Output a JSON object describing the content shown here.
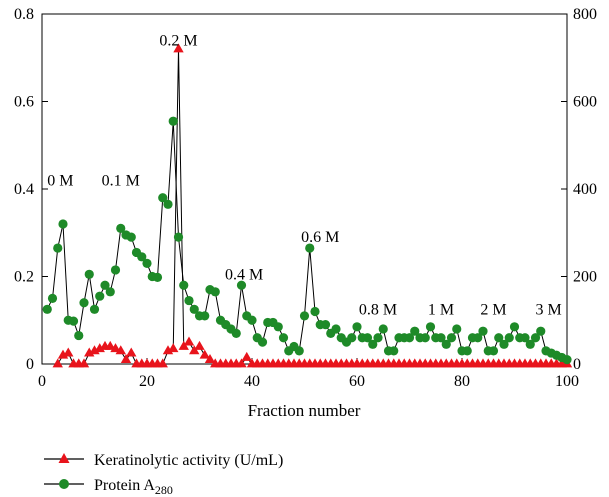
{
  "chart_data": {
    "type": "line",
    "xlabel": "Fraction number",
    "xlim": [
      0,
      100
    ],
    "xticks": [
      "0",
      "20",
      "40",
      "60",
      "80",
      "100"
    ],
    "y_left": {
      "lim": [
        0,
        0.8
      ],
      "ticks": [
        "0",
        "0.2",
        "0.4",
        "0.6",
        "0.8"
      ]
    },
    "y_right": {
      "lim": [
        0,
        800
      ],
      "ticks": [
        "0",
        "200",
        "400",
        "600",
        "800"
      ]
    },
    "legend_placement": "bottom-left",
    "annotations": [
      {
        "text": "0 M",
        "x": 3.5,
        "y": 0.42
      },
      {
        "text": "0.1 M",
        "x": 15,
        "y": 0.42
      },
      {
        "text": "0.2 M",
        "x": 26,
        "y": 0.74
      },
      {
        "text": "0.4 M",
        "x": 38.5,
        "y": 0.205
      },
      {
        "text": "0.6 M",
        "x": 53,
        "y": 0.29
      },
      {
        "text": "0.8 M",
        "x": 64,
        "y": 0.125
      },
      {
        "text": "1 M",
        "x": 76,
        "y": 0.125
      },
      {
        "text": "2 M",
        "x": 86,
        "y": 0.125
      },
      {
        "text": "3 M",
        "x": 96.5,
        "y": 0.125
      }
    ],
    "series": [
      {
        "name": "Keratinolytic activity (U/mL)",
        "axis": "left",
        "color": "#e8141c",
        "marker": "triangle",
        "x": [
          3,
          4,
          5,
          6,
          7,
          8,
          9,
          10,
          11,
          12,
          13,
          14,
          15,
          16,
          17,
          18,
          19,
          20,
          21,
          22,
          23,
          24,
          25,
          26,
          27,
          28,
          29,
          30,
          31,
          32,
          33,
          34,
          35,
          36,
          37,
          38,
          39,
          40,
          41,
          42,
          43,
          44,
          45,
          46,
          47,
          48,
          49,
          50,
          51,
          52,
          53,
          54,
          55,
          56,
          57,
          58,
          59,
          60,
          61,
          62,
          63,
          64,
          65,
          66,
          67,
          68,
          69,
          70,
          71,
          72,
          73,
          74,
          75,
          76,
          77,
          78,
          79,
          80,
          81,
          82,
          83,
          84,
          85,
          86,
          87,
          88,
          89,
          90,
          91,
          92,
          93,
          94,
          95,
          96,
          97,
          98,
          99,
          100
        ],
        "values": [
          0,
          0.02,
          0.025,
          0,
          0,
          0,
          0.025,
          0.03,
          0.035,
          0.04,
          0.04,
          0.035,
          0.03,
          0.01,
          0.025,
          0,
          0,
          0,
          0,
          0,
          0,
          0.03,
          0.035,
          0.72,
          0.04,
          0.05,
          0.03,
          0.04,
          0.02,
          0.01,
          0,
          0,
          0,
          0,
          0,
          0,
          0.015,
          0,
          0,
          0,
          0,
          0,
          0,
          0,
          0,
          0,
          0,
          0,
          0,
          0,
          0,
          0,
          0,
          0,
          0,
          0,
          0,
          0,
          0,
          0,
          0,
          0,
          0,
          0,
          0,
          0,
          0,
          0,
          0,
          0,
          0,
          0,
          0,
          0,
          0,
          0,
          0,
          0,
          0,
          0,
          0,
          0,
          0,
          0,
          0,
          0,
          0,
          0,
          0,
          0,
          0,
          0,
          0,
          0,
          0,
          0,
          0,
          0
        ]
      },
      {
        "name": "Protein A",
        "name_sub": "280",
        "axis": "right",
        "color": "#1e8a28",
        "marker": "circle",
        "x": [
          1,
          2,
          3,
          4,
          5,
          6,
          7,
          8,
          9,
          10,
          11,
          12,
          13,
          14,
          15,
          16,
          17,
          18,
          19,
          20,
          21,
          22,
          23,
          24,
          25,
          26,
          27,
          28,
          29,
          30,
          31,
          32,
          33,
          34,
          35,
          36,
          37,
          38,
          39,
          40,
          41,
          42,
          43,
          44,
          45,
          46,
          47,
          48,
          49,
          50,
          51,
          52,
          53,
          54,
          55,
          56,
          57,
          58,
          59,
          60,
          61,
          62,
          63,
          64,
          65,
          66,
          67,
          68,
          69,
          70,
          71,
          72,
          73,
          74,
          75,
          76,
          77,
          78,
          79,
          80,
          81,
          82,
          83,
          84,
          85,
          86,
          87,
          88,
          89,
          90,
          91,
          92,
          93,
          94,
          95,
          96,
          97,
          98,
          99,
          100
        ],
        "values": [
          125,
          150,
          265,
          320,
          100,
          98,
          65,
          140,
          205,
          125,
          155,
          180,
          165,
          215,
          310,
          295,
          290,
          255,
          245,
          230,
          200,
          198,
          380,
          365,
          555,
          290,
          180,
          145,
          125,
          110,
          110,
          170,
          165,
          100,
          90,
          80,
          70,
          180,
          110,
          100,
          60,
          50,
          95,
          95,
          85,
          60,
          30,
          40,
          30,
          110,
          265,
          120,
          90,
          90,
          70,
          80,
          60,
          50,
          60,
          85,
          60,
          60,
          45,
          60,
          80,
          30,
          30,
          60,
          60,
          60,
          75,
          60,
          60,
          85,
          60,
          60,
          45,
          60,
          80,
          30,
          30,
          60,
          60,
          75,
          30,
          30,
          60,
          45,
          60,
          85,
          60,
          60,
          45,
          60,
          75,
          30,
          25,
          20,
          15,
          10
        ]
      }
    ]
  }
}
